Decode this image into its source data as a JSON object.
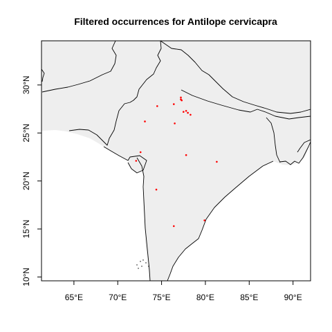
{
  "title": "Filtered occurrences for Antilope cervicapra",
  "colors": {
    "land": "#eeeeee",
    "border": "#000000",
    "point": "#ff0000",
    "background": "#ffffff"
  },
  "chart_data": {
    "type": "scatter",
    "title": "Filtered occurrences for Antilope cervicapra",
    "xlabel": "",
    "ylabel": "",
    "xlim": [
      61.3,
      92.0
    ],
    "ylim": [
      9.6,
      34.6
    ],
    "grid": false,
    "x_ticks": [
      {
        "value": 65,
        "label": "65°E"
      },
      {
        "value": 70,
        "label": "70°E"
      },
      {
        "value": 75,
        "label": "75°E"
      },
      {
        "value": 80,
        "label": "80°E"
      },
      {
        "value": 85,
        "label": "85°E"
      },
      {
        "value": 90,
        "label": "90°E"
      }
    ],
    "y_ticks": [
      {
        "value": 10,
        "label": "10°N"
      },
      {
        "value": 15,
        "label": "15°N"
      },
      {
        "value": 20,
        "label": "20°N"
      },
      {
        "value": 25,
        "label": "25°N"
      },
      {
        "value": 30,
        "label": "30°N"
      }
    ],
    "series": [
      {
        "points": [
          {
            "x": 77.2,
            "y": 28.7
          },
          {
            "x": 77.2,
            "y": 28.5
          },
          {
            "x": 77.3,
            "y": 28.4
          },
          {
            "x": 76.4,
            "y": 28.0
          },
          {
            "x": 74.5,
            "y": 27.8
          },
          {
            "x": 77.5,
            "y": 27.2
          },
          {
            "x": 77.8,
            "y": 27.3
          },
          {
            "x": 78.0,
            "y": 27.1
          },
          {
            "x": 78.3,
            "y": 26.9
          },
          {
            "x": 73.1,
            "y": 26.2
          },
          {
            "x": 76.5,
            "y": 26.0
          },
          {
            "x": 72.6,
            "y": 23.0
          },
          {
            "x": 77.8,
            "y": 22.7
          },
          {
            "x": 72.1,
            "y": 22.1
          },
          {
            "x": 81.3,
            "y": 22.0
          },
          {
            "x": 74.4,
            "y": 19.1
          },
          {
            "x": 79.9,
            "y": 15.9
          },
          {
            "x": 76.4,
            "y": 15.3
          }
        ]
      }
    ]
  }
}
